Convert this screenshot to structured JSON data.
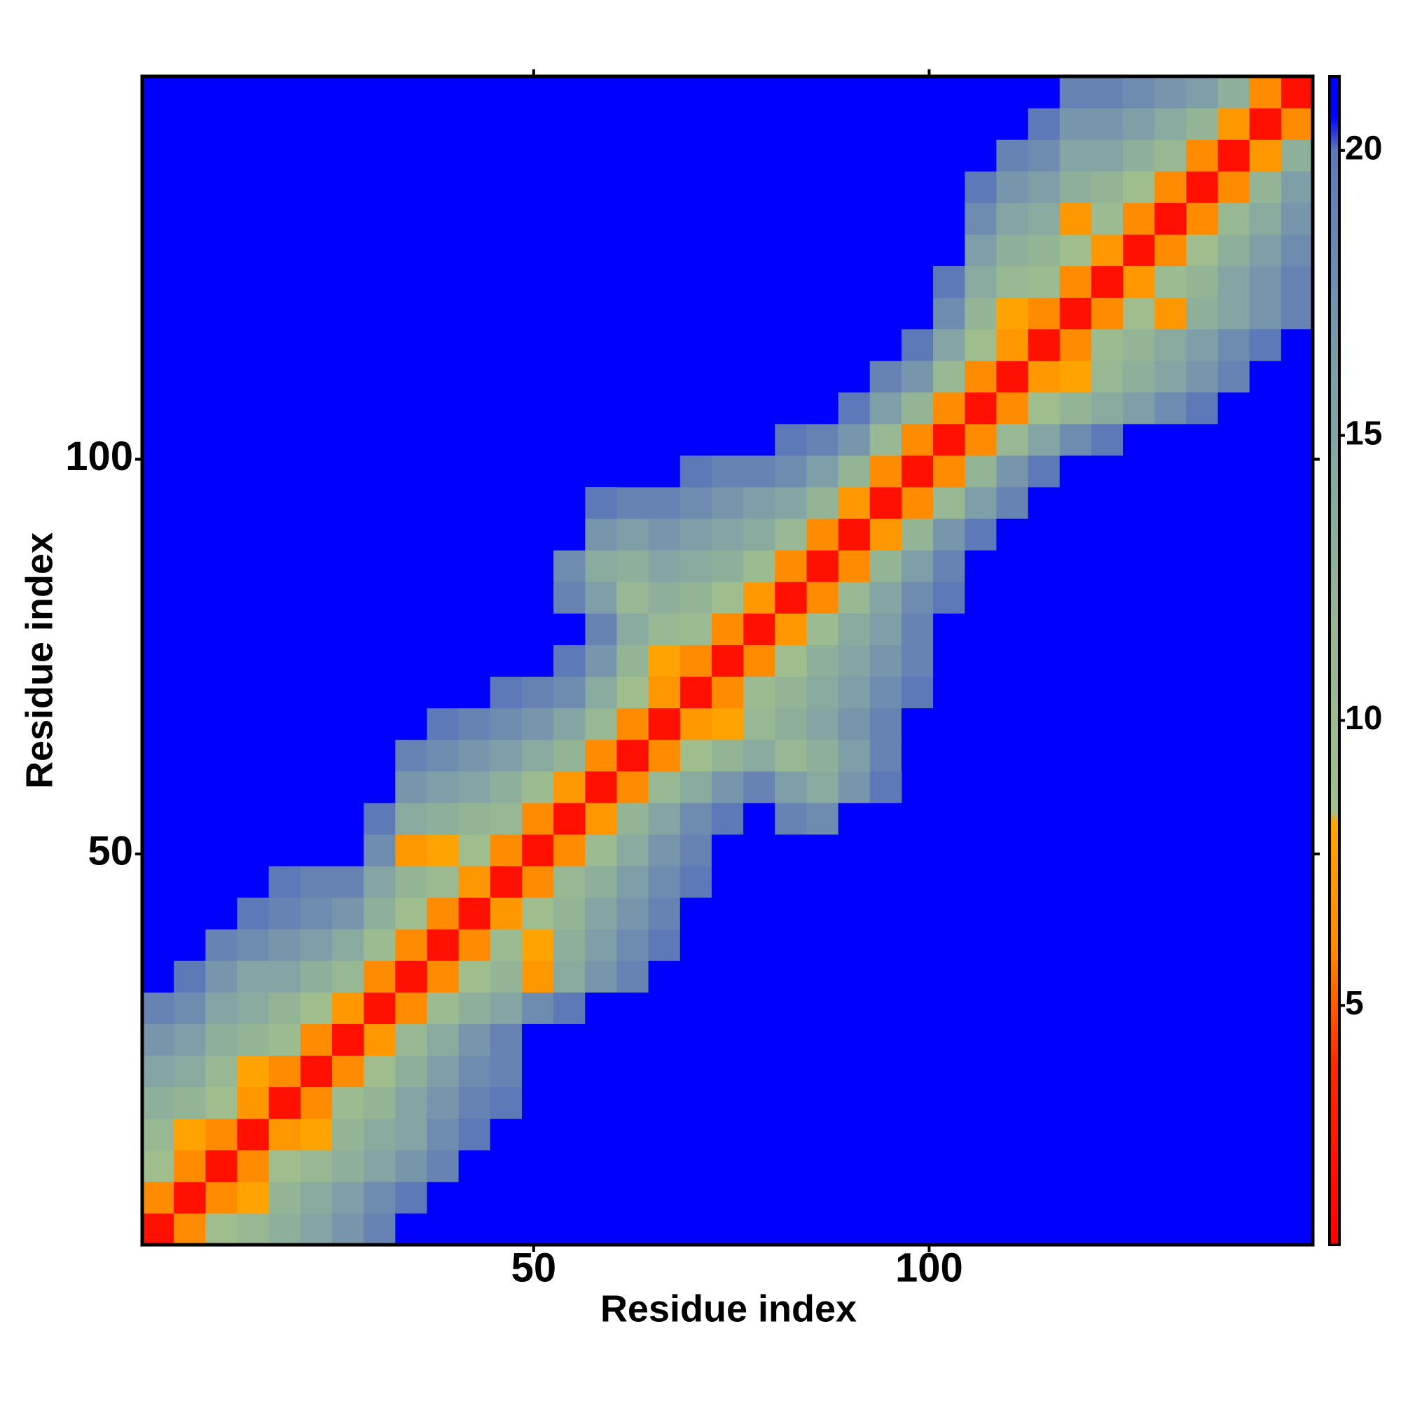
{
  "chart_data": {
    "type": "heatmap",
    "xlabel": "Residue index",
    "ylabel": "Residue index",
    "xlim": [
      0.5,
      148.5
    ],
    "ylim": [
      0.5,
      148.5
    ],
    "xticks": [
      50,
      100
    ],
    "yticks": [
      50,
      100
    ],
    "bins": [
      0.5,
      4.5,
      8.5,
      12.5,
      16.5,
      20.5,
      24.5,
      28.5,
      32.5,
      36.5,
      40.5,
      44.5,
      48.5,
      52.5,
      56.5,
      60.5,
      64.5,
      68.5,
      72.5,
      76.5,
      80.5,
      84.5,
      88.5,
      92.5,
      96.5,
      100.5,
      104.5,
      108.5,
      112.5,
      116.5,
      120.5,
      124.5,
      128.5,
      132.5,
      136.5,
      140.5,
      144.5,
      148.5
    ],
    "z": [
      [
        2,
        6,
        9,
        11,
        13,
        15,
        17,
        19,
        21,
        21
      ],
      [
        2,
        6,
        8,
        12,
        14,
        16,
        18,
        20,
        21,
        21
      ],
      [
        2,
        6,
        9,
        11,
        13,
        15,
        17,
        19,
        21,
        21
      ],
      [
        2,
        7,
        8,
        12,
        14,
        15,
        18,
        20,
        21,
        21
      ],
      [
        2,
        6,
        10,
        12,
        15,
        17,
        19,
        20,
        21,
        21
      ],
      [
        2,
        6,
        9,
        13,
        16,
        18,
        19,
        21,
        21,
        21
      ],
      [
        2,
        7,
        11,
        14,
        17,
        19,
        21,
        21,
        21,
        21
      ],
      [
        2,
        6,
        10,
        13,
        15,
        18,
        20,
        21,
        21,
        21
      ],
      [
        2,
        6,
        9,
        12,
        7,
        14,
        17,
        19,
        21,
        21
      ],
      [
        2,
        6,
        10,
        8,
        13,
        16,
        18,
        20,
        21,
        21
      ],
      [
        2,
        7,
        9,
        12,
        15,
        17,
        19,
        21,
        21,
        21
      ],
      [
        2,
        6,
        11,
        13,
        16,
        18,
        20,
        21,
        21,
        21
      ],
      [
        2,
        6,
        10,
        14,
        17,
        19,
        21,
        21,
        21,
        21
      ],
      [
        2,
        7,
        12,
        15,
        18,
        20,
        21,
        19,
        18,
        21
      ],
      [
        2,
        6,
        11,
        14,
        17,
        19,
        16,
        14,
        17,
        20
      ],
      [
        2,
        6,
        9,
        12,
        14,
        11,
        13,
        16,
        19,
        21
      ],
      [
        2,
        7,
        8,
        11,
        13,
        15,
        17,
        19,
        21,
        21
      ],
      [
        2,
        6,
        10,
        12,
        14,
        16,
        18,
        20,
        21,
        21
      ],
      [
        2,
        6,
        9,
        13,
        15,
        17,
        19,
        21,
        21,
        21
      ],
      [
        2,
        7,
        10,
        14,
        16,
        19,
        21,
        21,
        21,
        21
      ],
      [
        2,
        6,
        11,
        15,
        18,
        20,
        21,
        21,
        21,
        21
      ],
      [
        2,
        6,
        12,
        16,
        19,
        21,
        21,
        21,
        21,
        21
      ],
      [
        2,
        7,
        12,
        17,
        20,
        21,
        21,
        21,
        21,
        21
      ],
      [
        2,
        6,
        11,
        16,
        19,
        21,
        21,
        21,
        21,
        21
      ],
      [
        2,
        6,
        12,
        17,
        20,
        21,
        21,
        21,
        21,
        21
      ],
      [
        2,
        6,
        11,
        15,
        18,
        20,
        21,
        21,
        21,
        21
      ],
      [
        2,
        6,
        9,
        12,
        14,
        16,
        18,
        20,
        21,
        21
      ],
      [
        2,
        7,
        8,
        11,
        13,
        15,
        17,
        19,
        21,
        21
      ],
      [
        2,
        6,
        10,
        12,
        14,
        16,
        18,
        20,
        21
      ],
      [
        2,
        6,
        9,
        7,
        13,
        15,
        17,
        19
      ],
      [
        2,
        7,
        10,
        12,
        15,
        17,
        19
      ],
      [
        2,
        6,
        9,
        13,
        16,
        18
      ],
      [
        2,
        6,
        11,
        14,
        17
      ],
      [
        2,
        6,
        12,
        16
      ],
      [
        2,
        7,
        13
      ],
      [
        2,
        6
      ],
      [
        2
      ]
    ],
    "background_color": "#0000ff",
    "clim": [
      0.8,
      21.3
    ],
    "cticks": [
      5,
      10,
      15,
      20
    ],
    "colorscale": [
      [
        0.8,
        "#ff0000"
      ],
      [
        4,
        "#ff2a00"
      ],
      [
        6,
        "#ff8c00"
      ],
      [
        8.2,
        "#ffa500"
      ],
      [
        8.4,
        "#a3bf8c"
      ],
      [
        12,
        "#93b596"
      ],
      [
        16,
        "#7f9fa8"
      ],
      [
        20,
        "#5d79b8"
      ],
      [
        20.6,
        "#0000ff"
      ],
      [
        21.3,
        "#0000ff"
      ]
    ]
  }
}
